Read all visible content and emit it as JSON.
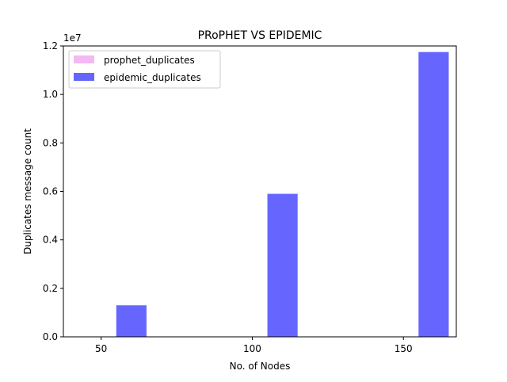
{
  "chart_data": {
    "type": "bar",
    "title": "PRoPHET VS EPIDEMIC",
    "xlabel": "No. of Nodes",
    "ylabel": "Duplicates message count",
    "y_offset_label": "1e7",
    "x": [
      50,
      100,
      150
    ],
    "xlim": [
      37.5,
      167.5
    ],
    "ylim": [
      0,
      1.2
    ],
    "x_ticks": [
      "50",
      "100",
      "150"
    ],
    "y_ticks": [
      "0.0",
      "0.2",
      "0.4",
      "0.6",
      "0.8",
      "1.0",
      "1.2"
    ],
    "legend_position": "top-left",
    "series": [
      {
        "name": "prophet_duplicates",
        "color": "#f4b8f4",
        "values": [
          0,
          0,
          0
        ]
      },
      {
        "name": "epidemic_duplicates",
        "color": "#6666ff",
        "values": [
          0.13,
          0.59,
          1.175
        ]
      }
    ]
  }
}
